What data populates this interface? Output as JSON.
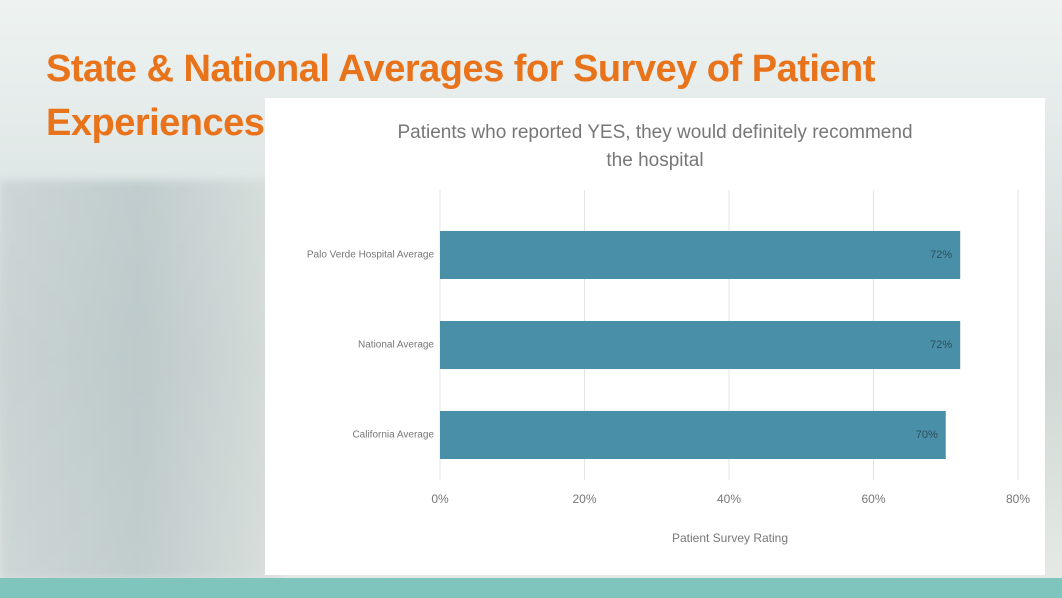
{
  "slide_title": "State & National Averages for Survey of Patient Experiences",
  "chart_data": {
    "type": "bar",
    "orientation": "horizontal",
    "title": "Patients who reported YES, they would definitely recommend the hospital",
    "categories": [
      "Palo Verde Hospital Average",
      "National Average",
      "California Average"
    ],
    "values": [
      72,
      72,
      70
    ],
    "value_labels": [
      "72%",
      "72%",
      "70%"
    ],
    "color": "#4a8fa8",
    "xlabel": "Patient Survey Rating",
    "xlim": [
      0,
      80
    ],
    "xticks": [
      {
        "value": 0,
        "label": "0%"
      },
      {
        "value": 20,
        "label": "20%"
      },
      {
        "value": 40,
        "label": "40%"
      },
      {
        "value": 60,
        "label": "60%"
      },
      {
        "value": 80,
        "label": "80%"
      }
    ],
    "grid": true
  }
}
